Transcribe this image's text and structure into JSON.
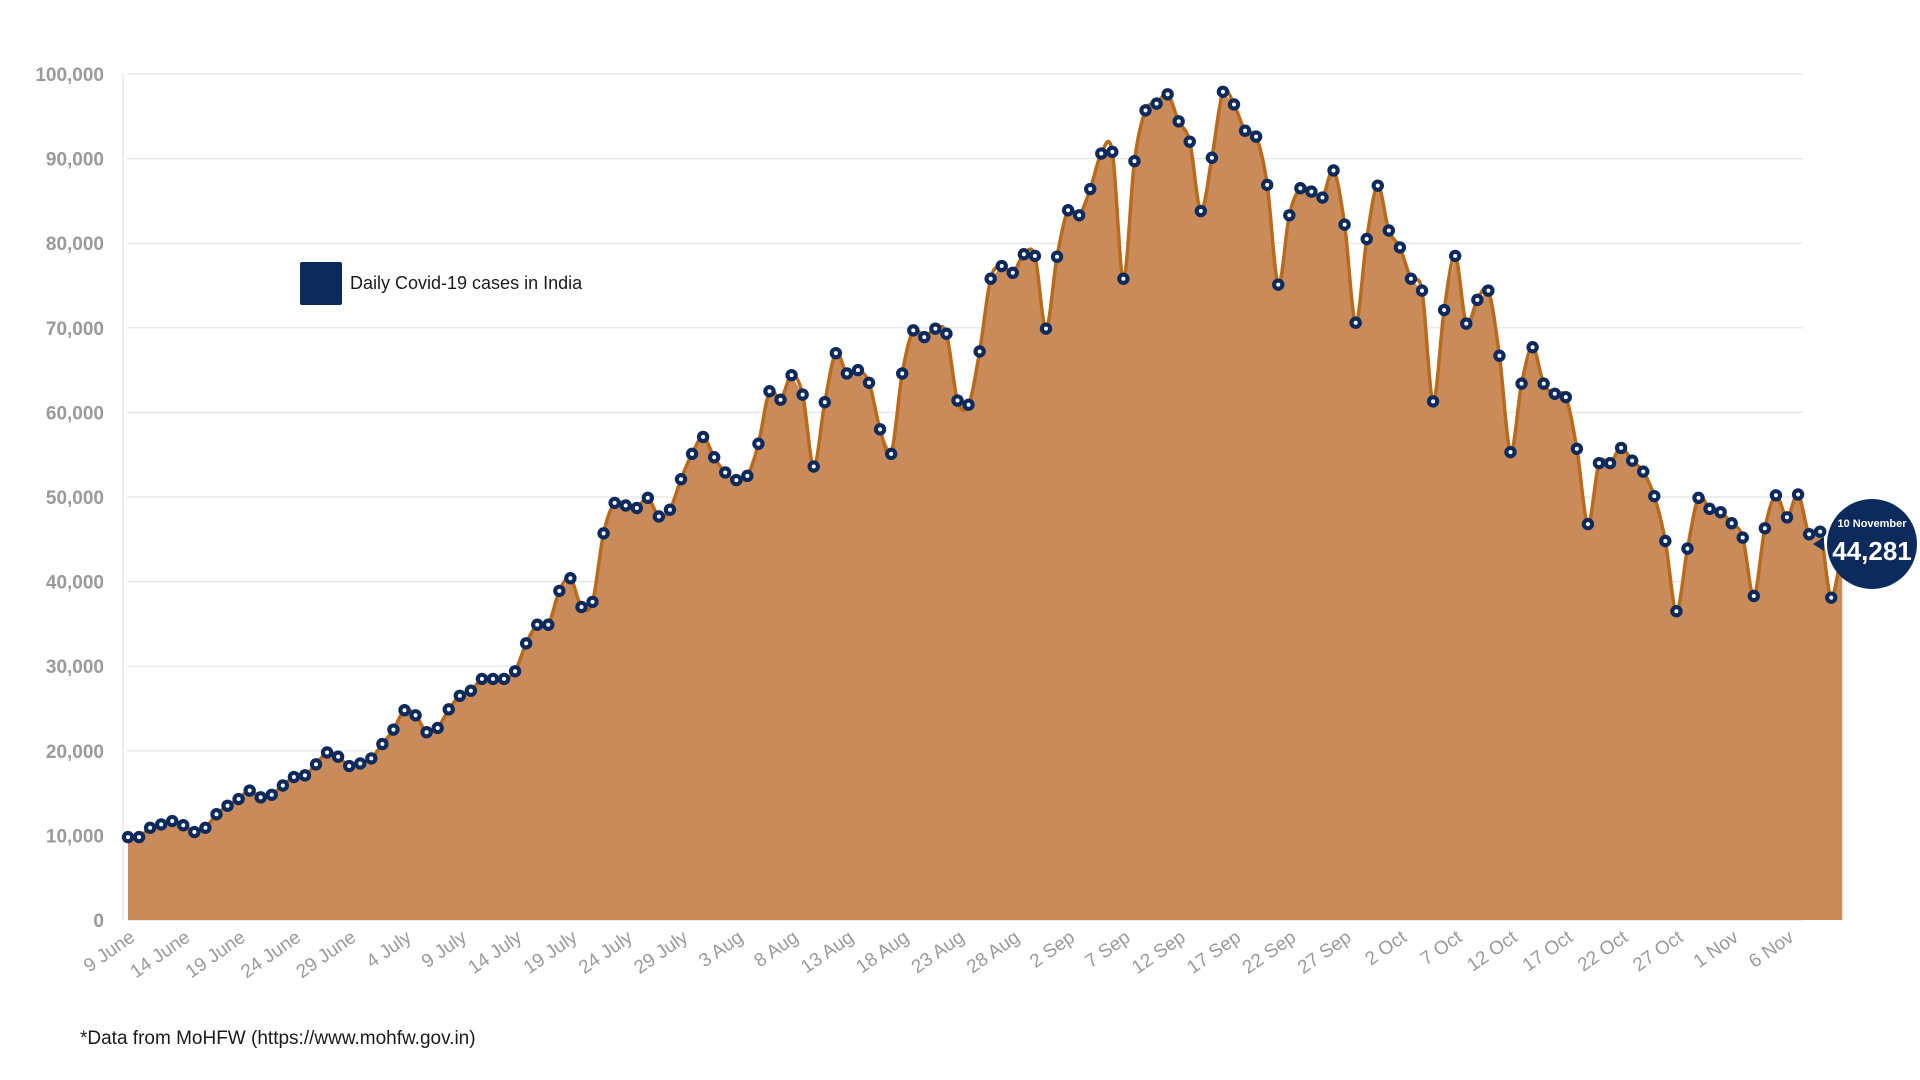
{
  "colors": {
    "area_fill": "#c98b5a",
    "line": "#b96a1c",
    "marker": "#0c2a5c",
    "grid": "#e3e3e3",
    "tick_label": "#9a9a9a",
    "legend_text": "#1a1a1a"
  },
  "legend": {
    "label": "Daily Covid-19 cases in India"
  },
  "callout": {
    "date": "10 November",
    "value": "44,281"
  },
  "source_note": "*Data from MoHFW (https://www.mohfw.gov.in)",
  "chart_data": {
    "type": "area",
    "x_start": "9 June",
    "x_end": "10 Nov",
    "ylim": [
      0,
      100000
    ],
    "y_ticks": [
      0,
      10000,
      20000,
      30000,
      40000,
      50000,
      60000,
      70000,
      80000,
      90000,
      100000
    ],
    "y_tick_labels": [
      "0",
      "10,000",
      "20,000",
      "30,000",
      "40,000",
      "50,000",
      "60,000",
      "70,000",
      "80,000",
      "90,000",
      "100,000"
    ],
    "x_tick_labels": [
      "9 June",
      "14 June",
      "19 June",
      "24 June",
      "29 June",
      "4 July",
      "9 July",
      "14 July",
      "19 July",
      "24 July",
      "29 July",
      "3 Aug",
      "8 Aug",
      "13 Aug",
      "18 Aug",
      "23 Aug",
      "28 Aug",
      "2 Sep",
      "7 Sep",
      "12 Sep",
      "17 Sep",
      "22 Sep",
      "27 Sep",
      "2 Oct",
      "7 Oct",
      "12 Oct",
      "17 Oct",
      "22 Oct",
      "27 Oct",
      "1 Nov",
      "6 Nov"
    ],
    "grid": true,
    "legend_position": "upper-left",
    "series": [
      {
        "name": "Daily Covid-19 cases in India",
        "values": [
          9800,
          9800,
          10900,
          11300,
          11700,
          11200,
          10400,
          10900,
          12500,
          13500,
          14300,
          15300,
          14500,
          14800,
          15900,
          16900,
          17100,
          18400,
          19800,
          19300,
          18200,
          18500,
          19100,
          20800,
          22500,
          24800,
          24200,
          22200,
          22700,
          24900,
          26500,
          27100,
          28500,
          28500,
          28500,
          29400,
          32700,
          34900,
          34900,
          38900,
          40400,
          37000,
          37600,
          45700,
          49300,
          49000,
          48700,
          49900,
          47700,
          48500,
          52100,
          55100,
          57100,
          54700,
          52900,
          52000,
          52500,
          56300,
          62500,
          61500,
          64400,
          62100,
          53600,
          61200,
          67000,
          64600,
          65000,
          63500,
          58000,
          55100,
          64600,
          69700,
          68900,
          69900,
          69300,
          61400,
          60900,
          67200,
          75800,
          77300,
          76500,
          78700,
          78500,
          69900,
          78400,
          83900,
          83300,
          86400,
          90600,
          90800,
          75800,
          89700,
          95700,
          96500,
          97600,
          94400,
          92000,
          83800,
          90100,
          97900,
          96400,
          93300,
          92600,
          86900,
          75100,
          83300,
          86500,
          86100,
          85400,
          88600,
          82200,
          70600,
          80500,
          86800,
          81500,
          79500,
          75800,
          74400,
          61300,
          72100,
          78500,
          70500,
          73300,
          74400,
          66700,
          55300,
          63400,
          67700,
          63400,
          62200,
          61800,
          55700,
          46800,
          54000,
          54000,
          55800,
          54300,
          53000,
          50100,
          44800,
          36500,
          43900,
          49900,
          48600,
          48200,
          46900,
          45200,
          38300,
          46300,
          50200,
          47600,
          50300,
          45600,
          45900,
          38100,
          44281
        ]
      }
    ]
  }
}
